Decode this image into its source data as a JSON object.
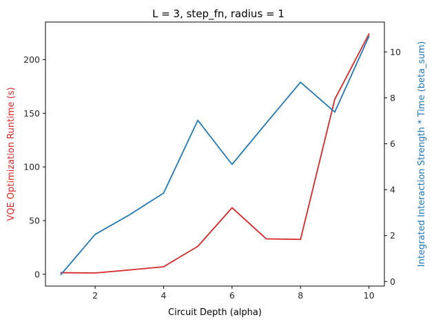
{
  "chart_data": {
    "type": "line",
    "title": "L = 3, step_fn, radius = 1",
    "xlabel": "Circuit Depth (alpha)",
    "ylabel_left": "VQE Optimization Runtime (s)",
    "ylabel_right": "Integrated Interaction Strength * Time (beta_sum)",
    "x": [
      1,
      2,
      3,
      4,
      5,
      6,
      7,
      8,
      9,
      10
    ],
    "xlim": [
      0.55,
      10.45
    ],
    "xticks": [
      2,
      4,
      6,
      8,
      10
    ],
    "ylim_left": [
      -11,
      235
    ],
    "yticks_left": [
      0,
      50,
      100,
      150,
      200
    ],
    "ylim_right": [
      -0.2,
      11.3
    ],
    "yticks_right": [
      0,
      2,
      4,
      6,
      8,
      10
    ],
    "grid": false,
    "legend": "none",
    "series": [
      {
        "axis": "left",
        "color": "#d62728",
        "values": [
          1.5,
          1.2,
          4.0,
          7.0,
          26.0,
          62.0,
          33.0,
          32.5,
          163.0,
          224.0
        ]
      },
      {
        "axis": "right",
        "color": "#1f77b4",
        "values": [
          0.3,
          2.05,
          2.9,
          3.85,
          7.02,
          5.1,
          6.9,
          8.68,
          7.38,
          10.68
        ]
      }
    ],
    "colors": {
      "left_axis_label": "#d62728",
      "right_axis_label": "#1f77b4",
      "axes": "#000000"
    }
  }
}
